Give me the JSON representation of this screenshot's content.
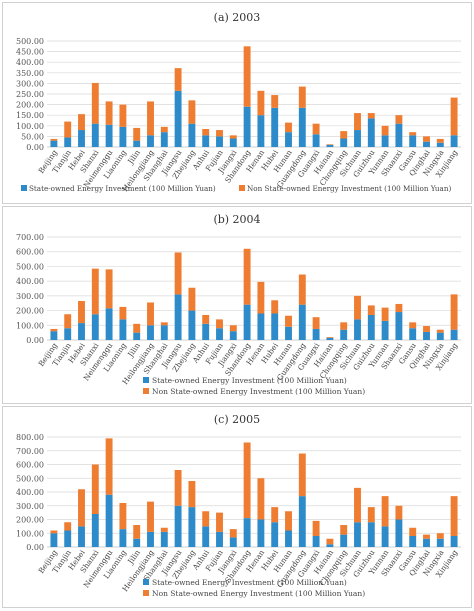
{
  "provinces": [
    "Beijing",
    "Tianjin",
    "Hebei",
    "Shanxi",
    "Neimenggu",
    "Liaoning",
    "Jilin",
    "Heilongjiang",
    "Shanghai",
    "Jiangsu",
    "Zhejiang",
    "Anhui",
    "Fujian",
    "Jiangxi",
    "Shandong",
    "Henan",
    "Hubei",
    "Hunan",
    "Guangdong",
    "Guangxi",
    "Hainan",
    "Chongqing",
    "Sichuan",
    "Guizhou",
    "Yunnan",
    "Shaanxi",
    "Gansu",
    "Qinghai",
    "Ningxia",
    "Xinjiang"
  ],
  "colors": {
    "state": "#2e8bc9",
    "nonstate": "#ef7d31",
    "grid": "#d9d9d9",
    "axis": "#bfbfbf"
  },
  "chart_data": [
    {
      "type": "bar",
      "stacked": true,
      "title": "(a)  2003",
      "xlabel": "",
      "ylabel": "",
      "ylim": [
        0,
        500
      ],
      "yticks": [
        "0.00",
        "50.00",
        "100.00",
        "150.00",
        "200.00",
        "250.00",
        "300.00",
        "350.00",
        "400.00",
        "450.00",
        "500.00"
      ],
      "legend_position": "bottom",
      "series": [
        {
          "name": "State-owned Energy Investment (100 Million Yuan)",
          "values": [
            30,
            45,
            80,
            110,
            105,
            95,
            30,
            55,
            70,
            265,
            110,
            55,
            50,
            40,
            190,
            150,
            185,
            70,
            185,
            60,
            10,
            40,
            80,
            135,
            55,
            110,
            55,
            25,
            20,
            55
          ]
        },
        {
          "name": "Non State-owned Energy Investment (100 Million Yuan)",
          "values": [
            8,
            75,
            75,
            192,
            110,
            105,
            60,
            160,
            25,
            107,
            110,
            30,
            30,
            15,
            285,
            115,
            60,
            45,
            100,
            50,
            3,
            35,
            80,
            25,
            45,
            40,
            15,
            25,
            18,
            178
          ]
        }
      ]
    },
    {
      "type": "bar",
      "stacked": true,
      "title": "(b)  2004",
      "xlabel": "",
      "ylabel": "",
      "ylim": [
        0,
        700
      ],
      "yticks": [
        "0.00",
        "100.00",
        "200.00",
        "300.00",
        "400.00",
        "500.00",
        "600.00",
        "700.00"
      ],
      "legend_position": "bottom",
      "series": [
        {
          "name": "State-owned Energy Investment (100 Million Yuan)",
          "values": [
            60,
            80,
            115,
            175,
            215,
            140,
            50,
            100,
            100,
            310,
            200,
            110,
            80,
            60,
            240,
            180,
            180,
            90,
            240,
            75,
            15,
            70,
            140,
            170,
            130,
            190,
            80,
            55,
            50,
            70
          ]
        },
        {
          "name": "Non State-owned Energy Investment (100 Million Yuan)",
          "values": [
            15,
            95,
            150,
            310,
            265,
            85,
            60,
            155,
            20,
            285,
            155,
            60,
            60,
            40,
            380,
            215,
            90,
            75,
            205,
            80,
            5,
            50,
            160,
            65,
            90,
            55,
            40,
            40,
            20,
            240
          ]
        }
      ]
    },
    {
      "type": "bar",
      "stacked": true,
      "title": "(c)  2005",
      "xlabel": "",
      "ylabel": "",
      "ylim": [
        0,
        800
      ],
      "yticks": [
        "0.00",
        "100.00",
        "200.00",
        "300.00",
        "400.00",
        "500.00",
        "600.00",
        "700.00",
        "800.00"
      ],
      "legend_position": "bottom",
      "series": [
        {
          "name": "State-owned Energy Investment (100 Million Yuan)",
          "values": [
            100,
            120,
            150,
            240,
            380,
            130,
            60,
            110,
            110,
            300,
            290,
            150,
            110,
            70,
            210,
            200,
            180,
            120,
            370,
            80,
            20,
            90,
            180,
            180,
            150,
            200,
            80,
            60,
            60,
            80
          ]
        },
        {
          "name": "Non State-owned Energy Investment (100 Million Yuan)",
          "values": [
            20,
            60,
            270,
            360,
            410,
            190,
            100,
            220,
            30,
            260,
            190,
            110,
            140,
            60,
            550,
            300,
            110,
            140,
            310,
            110,
            40,
            70,
            250,
            110,
            220,
            100,
            60,
            30,
            40,
            290
          ]
        }
      ]
    }
  ]
}
